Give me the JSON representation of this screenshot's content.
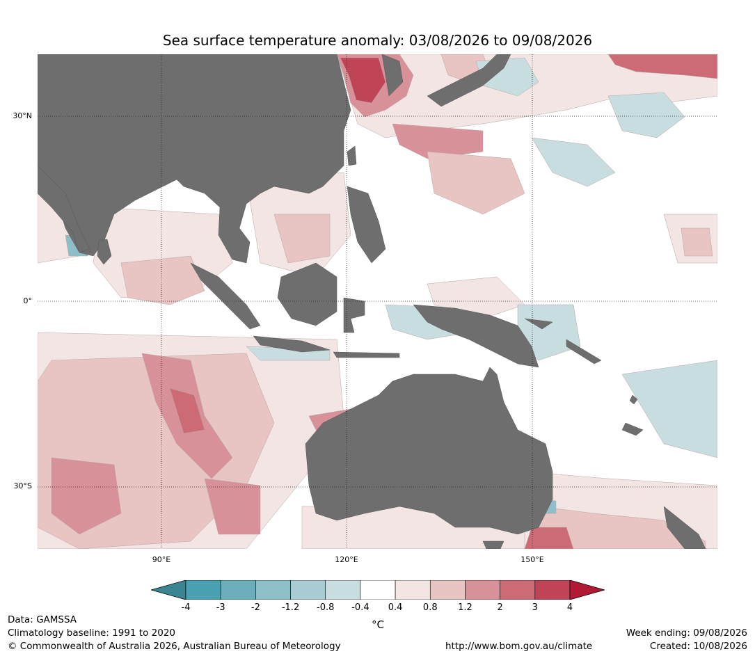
{
  "title": "Sea surface temperature anomaly: 03/08/2026 to 09/08/2026",
  "map": {
    "region": "Indian Ocean, Maritime Continent and Western Pacific",
    "lon_range_deg": [
      70,
      180
    ],
    "lat_range_deg": [
      -40,
      40
    ],
    "latitude_labels": [
      "30°N",
      "0°",
      "30°S"
    ],
    "longitude_labels": [
      "90°E",
      "120°E",
      "150°E"
    ],
    "gridlines": true,
    "colors": {
      "land": "#6e6e6e",
      "ocean_neutral": "#ffffff",
      "gridline": "#222222"
    }
  },
  "colorbar": {
    "tick_labels": [
      "-4",
      "-3",
      "-2",
      "-1.2",
      "-0.8",
      "-0.4",
      "0.4",
      "0.8",
      "1.2",
      "2",
      "3",
      "4"
    ],
    "bins": [
      {
        "from": -4,
        "to": -3,
        "color": "#48a0b2"
      },
      {
        "from": -3,
        "to": -2,
        "color": "#6bafbd"
      },
      {
        "from": -2,
        "to": -1.2,
        "color": "#8ebec8"
      },
      {
        "from": -1.2,
        "to": -0.8,
        "color": "#a9ccd2"
      },
      {
        "from": -0.8,
        "to": -0.4,
        "color": "#c8dde0"
      },
      {
        "from": -0.4,
        "to": 0.4,
        "color": "#ffffff"
      },
      {
        "from": 0.4,
        "to": 0.8,
        "color": "#f3e5e4"
      },
      {
        "from": 0.8,
        "to": 1.2,
        "color": "#e8c4c2"
      },
      {
        "from": 1.2,
        "to": 2,
        "color": "#d99199"
      },
      {
        "from": 2,
        "to": 3,
        "color": "#cc6b76"
      },
      {
        "from": 3,
        "to": 4,
        "color": "#bf4556"
      }
    ],
    "extend_low_color": "#3a8591",
    "extend_high_color": "#b01a35",
    "unit": "°C"
  },
  "footer": {
    "data_source": "Data: GAMSSA",
    "baseline": "Climatology baseline: 1991 to 2020",
    "copyright": "© Commonwealth of Australia 2026, Australian Bureau of Meteorology",
    "url": "http://www.bom.gov.au/climate",
    "week_ending": "Week ending: 09/08/2026",
    "created": "Created: 10/08/2026"
  }
}
